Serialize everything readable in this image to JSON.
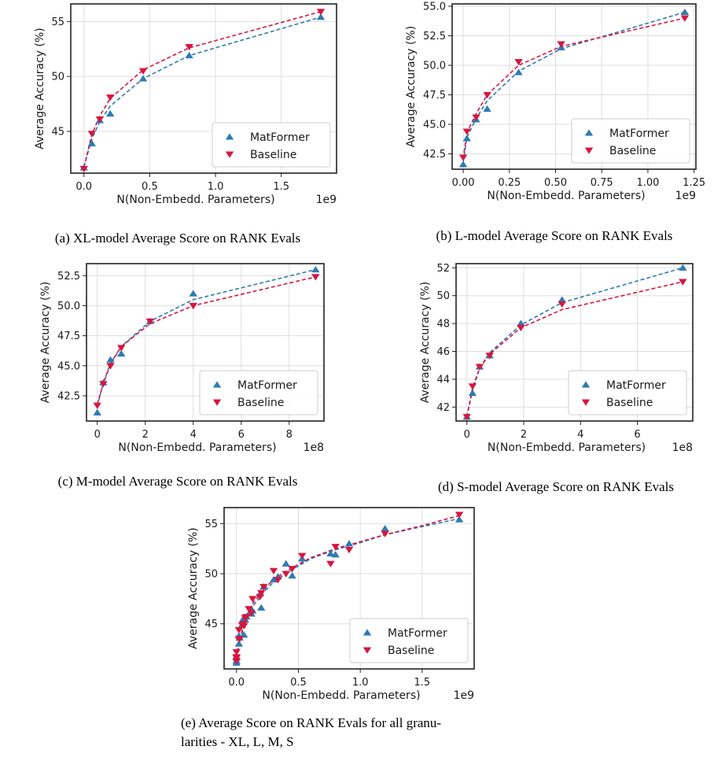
{
  "colors": {
    "matformer": "#2e7ab3",
    "baseline": "#d8153f",
    "grid": "#dddddd",
    "frame": "#222222"
  },
  "chart_data": [
    {
      "id": "a",
      "type": "scatter",
      "caption": "(a) XL-model Average Score on RANK Evals",
      "xlabel": "N(Non-Embedd. Parameters)",
      "ylabel": "Average Accuracy (%)",
      "x_offset_label": "1e9",
      "xlim": [
        -0.1,
        1.92
      ],
      "ylim": [
        41.2,
        56.6
      ],
      "xticks": [
        0.0,
        0.5,
        1.0,
        1.5
      ],
      "xtick_labels": [
        "0.0",
        "0.5",
        "1.0",
        "1.5"
      ],
      "yticks": [
        45,
        50,
        55
      ],
      "ytick_labels": [
        "45",
        "50",
        "55"
      ],
      "legend": "lower-right",
      "grid": true,
      "series": [
        {
          "name": "MatFormer",
          "marker": "triangle-up",
          "color": "#2e7ab3",
          "x": [
            0.0,
            0.06,
            0.12,
            0.2,
            0.45,
            0.8,
            1.8
          ],
          "y": [
            41.7,
            43.9,
            46.0,
            46.6,
            49.8,
            51.9,
            55.4
          ],
          "fit_x": [
            0.0,
            0.06,
            0.12,
            0.2,
            0.45,
            0.8,
            1.8
          ],
          "fit_y": [
            41.8,
            44.3,
            45.9,
            47.3,
            49.8,
            51.9,
            55.4
          ]
        },
        {
          "name": "Baseline",
          "marker": "triangle-down",
          "color": "#d8153f",
          "x": [
            0.0,
            0.06,
            0.12,
            0.2,
            0.45,
            0.8,
            1.8
          ],
          "y": [
            41.6,
            44.8,
            46.1,
            48.1,
            50.5,
            52.7,
            55.9
          ],
          "fit_x": [
            0.0,
            0.06,
            0.12,
            0.2,
            0.45,
            0.8,
            1.8
          ],
          "fit_y": [
            41.7,
            44.7,
            46.4,
            48.0,
            50.6,
            52.6,
            55.9
          ]
        }
      ]
    },
    {
      "id": "b",
      "type": "scatter",
      "caption": "(b) L-model Average Score on RANK Evals",
      "xlabel": "N(Non-Embedd. Parameters)",
      "ylabel": "Average Accuracy (%)",
      "x_offset_label": "1e9",
      "xlim": [
        -0.06,
        1.26
      ],
      "ylim": [
        41.2,
        55.2
      ],
      "xticks": [
        0.0,
        0.25,
        0.5,
        0.75,
        1.0,
        1.25
      ],
      "xtick_labels": [
        "0.00",
        "0.25",
        "0.50",
        "0.75",
        "1.00",
        "1.25"
      ],
      "yticks": [
        42.5,
        45.0,
        47.5,
        50.0,
        52.5,
        55.0
      ],
      "ytick_labels": [
        "42.5",
        "45.0",
        "47.5",
        "50.0",
        "52.5",
        "55.0"
      ],
      "legend": "lower-right",
      "grid": true,
      "series": [
        {
          "name": "MatFormer",
          "marker": "triangle-up",
          "color": "#2e7ab3",
          "x": [
            0.0,
            0.02,
            0.07,
            0.13,
            0.3,
            0.53,
            1.2
          ],
          "y": [
            41.6,
            43.8,
            45.4,
            46.3,
            49.4,
            51.5,
            54.5
          ],
          "fit_x": [
            0.0,
            0.02,
            0.07,
            0.13,
            0.3,
            0.53,
            1.2
          ],
          "fit_y": [
            41.8,
            43.9,
            45.5,
            47.0,
            49.5,
            51.4,
            54.5
          ]
        },
        {
          "name": "Baseline",
          "marker": "triangle-down",
          "color": "#d8153f",
          "x": [
            0.0,
            0.02,
            0.07,
            0.13,
            0.3,
            0.53,
            1.2
          ],
          "y": [
            42.2,
            44.4,
            45.6,
            47.5,
            50.3,
            51.8,
            54.0
          ],
          "fit_x": [
            0.0,
            0.02,
            0.07,
            0.13,
            0.3,
            0.53,
            1.2
          ],
          "fit_y": [
            42.1,
            44.3,
            45.9,
            47.5,
            50.0,
            51.6,
            54.0
          ]
        }
      ]
    },
    {
      "id": "c",
      "type": "scatter",
      "caption": "(c) M-model Average Score on RANK Evals",
      "xlabel": "N(Non-Embedd. Parameters)",
      "ylabel": "Average Accuracy (%)",
      "x_offset_label": "1e8",
      "xlim": [
        -0.45,
        9.45
      ],
      "ylim": [
        40.4,
        53.5
      ],
      "xticks": [
        0,
        2,
        4,
        6,
        8
      ],
      "xtick_labels": [
        "0",
        "2",
        "4",
        "6",
        "8"
      ],
      "yticks": [
        42.5,
        45.0,
        47.5,
        50.0,
        52.5
      ],
      "ytick_labels": [
        "42.5",
        "45.0",
        "47.5",
        "50.0",
        "52.5"
      ],
      "legend": "lower-right",
      "grid": true,
      "series": [
        {
          "name": "MatFormer",
          "marker": "triangle-up",
          "color": "#2e7ab3",
          "x": [
            0.0,
            0.25,
            0.55,
            1.0,
            2.2,
            4.0,
            9.1
          ],
          "y": [
            41.1,
            43.6,
            45.5,
            46.0,
            48.7,
            51.0,
            53.0
          ],
          "fit_x": [
            0.0,
            0.25,
            0.55,
            1.0,
            2.2,
            4.0,
            9.1
          ],
          "fit_y": [
            41.6,
            43.6,
            45.2,
            46.6,
            48.7,
            50.5,
            53.0
          ]
        },
        {
          "name": "Baseline",
          "marker": "triangle-down",
          "color": "#d8153f",
          "x": [
            0.0,
            0.25,
            0.55,
            1.0,
            2.2,
            4.0,
            9.1
          ],
          "y": [
            41.7,
            43.5,
            45.0,
            46.5,
            48.7,
            50.0,
            52.4
          ],
          "fit_x": [
            0.0,
            0.25,
            0.55,
            1.0,
            2.2,
            4.0,
            9.1
          ],
          "fit_y": [
            41.8,
            43.5,
            45.1,
            46.6,
            48.5,
            50.0,
            52.4
          ]
        }
      ]
    },
    {
      "id": "d",
      "type": "scatter",
      "caption": "(d) S-model Average Score on RANK Evals",
      "xlabel": "N(Non-Embedd. Parameters)",
      "ylabel": "Average Accuracy (%)",
      "x_offset_label": "1e8",
      "xlim": [
        -0.38,
        7.95
      ],
      "ylim": [
        41.0,
        52.3
      ],
      "xticks": [
        0,
        2,
        4,
        6
      ],
      "xtick_labels": [
        "0",
        "2",
        "4",
        "6"
      ],
      "yticks": [
        42,
        44,
        46,
        48,
        50,
        52
      ],
      "ytick_labels": [
        "42",
        "44",
        "46",
        "48",
        "50",
        "52"
      ],
      "legend": "lower-right",
      "grid": true,
      "series": [
        {
          "name": "MatFormer",
          "marker": "triangle-up",
          "color": "#2e7ab3",
          "x": [
            0.0,
            0.2,
            0.45,
            0.8,
            1.9,
            3.35,
            7.6
          ],
          "y": [
            41.3,
            43.0,
            44.9,
            45.7,
            48.0,
            49.7,
            52.0
          ],
          "fit_x": [
            0.0,
            0.2,
            0.45,
            0.8,
            1.9,
            3.35,
            7.6
          ],
          "fit_y": [
            41.3,
            43.2,
            44.8,
            45.9,
            47.9,
            49.5,
            52.0
          ]
        },
        {
          "name": "Baseline",
          "marker": "triangle-down",
          "color": "#d8153f",
          "x": [
            0.0,
            0.2,
            0.45,
            0.8,
            1.9,
            3.35,
            7.6
          ],
          "y": [
            41.3,
            43.5,
            44.9,
            45.7,
            47.7,
            49.4,
            51.0
          ],
          "fit_x": [
            0.0,
            0.2,
            0.45,
            0.8,
            1.9,
            3.35,
            7.6
          ],
          "fit_y": [
            41.3,
            43.4,
            44.8,
            45.8,
            47.7,
            49.0,
            51.0
          ]
        }
      ]
    },
    {
      "id": "e",
      "type": "scatter",
      "caption": "(e) Average Score on RANK Evals for all granu- larities - XL, L, M, S",
      "caption_lines": [
        "(e) Average Score on RANK Evals for all granu-",
        "larities - XL, L, M, S"
      ],
      "xlabel": "N(Non-Embedd. Parameters)",
      "ylabel": "Average Accuracy (%)",
      "x_offset_label": "1e9",
      "xlim": [
        -0.1,
        1.92
      ],
      "ylim": [
        40.5,
        56.6
      ],
      "xticks": [
        0.0,
        0.5,
        1.0,
        1.5
      ],
      "xtick_labels": [
        "0.0",
        "0.5",
        "1.0",
        "1.5"
      ],
      "yticks": [
        45,
        50,
        55
      ],
      "ytick_labels": [
        "45",
        "50",
        "55"
      ],
      "legend": "lower-right",
      "grid": true,
      "series": [
        {
          "name": "MatFormer",
          "marker": "triangle-up",
          "color": "#2e7ab3",
          "x": [
            0.0,
            0.06,
            0.12,
            0.2,
            0.45,
            0.8,
            1.8,
            0.0,
            0.02,
            0.07,
            0.13,
            0.3,
            0.53,
            1.2,
            0.0,
            0.025,
            0.055,
            0.1,
            0.22,
            0.4,
            0.91,
            0.0,
            0.02,
            0.045,
            0.08,
            0.19,
            0.335,
            0.76
          ],
          "y": [
            41.7,
            43.9,
            46.0,
            46.6,
            49.8,
            51.9,
            55.4,
            41.6,
            43.8,
            45.4,
            46.3,
            49.4,
            51.5,
            54.5,
            41.1,
            43.6,
            45.5,
            46.0,
            48.7,
            51.0,
            53.0,
            41.3,
            43.0,
            44.9,
            45.7,
            48.0,
            49.7,
            52.0
          ],
          "fit_x": [
            0.0,
            0.03,
            0.07,
            0.13,
            0.22,
            0.32,
            0.45,
            0.6,
            0.8,
            1.0,
            1.2,
            1.5,
            1.8
          ],
          "fit_y": [
            41.5,
            43.5,
            45.2,
            46.7,
            48.2,
            49.4,
            50.4,
            51.5,
            52.4,
            53.1,
            53.9,
            54.7,
            55.5
          ]
        },
        {
          "name": "Baseline",
          "marker": "triangle-down",
          "color": "#d8153f",
          "x": [
            0.0,
            0.06,
            0.12,
            0.2,
            0.45,
            0.8,
            1.8,
            0.0,
            0.02,
            0.07,
            0.13,
            0.3,
            0.53,
            1.2,
            0.0,
            0.025,
            0.055,
            0.1,
            0.22,
            0.4,
            0.91,
            0.0,
            0.02,
            0.045,
            0.08,
            0.19,
            0.335,
            0.76
          ],
          "y": [
            41.6,
            44.8,
            46.1,
            48.1,
            50.5,
            52.7,
            55.9,
            42.2,
            44.4,
            45.6,
            47.5,
            50.3,
            51.8,
            54.0,
            41.7,
            43.5,
            45.0,
            46.5,
            48.7,
            50.0,
            52.4,
            41.3,
            43.5,
            44.9,
            45.7,
            47.7,
            49.4,
            51.0
          ],
          "fit_x": [
            0.0,
            0.03,
            0.07,
            0.13,
            0.22,
            0.32,
            0.45,
            0.6,
            0.8,
            1.0,
            1.2,
            1.5,
            1.8
          ],
          "fit_y": [
            41.6,
            43.7,
            45.4,
            47.0,
            48.5,
            49.6,
            50.6,
            51.6,
            52.5,
            53.2,
            53.9,
            54.8,
            55.8
          ]
        }
      ]
    }
  ]
}
